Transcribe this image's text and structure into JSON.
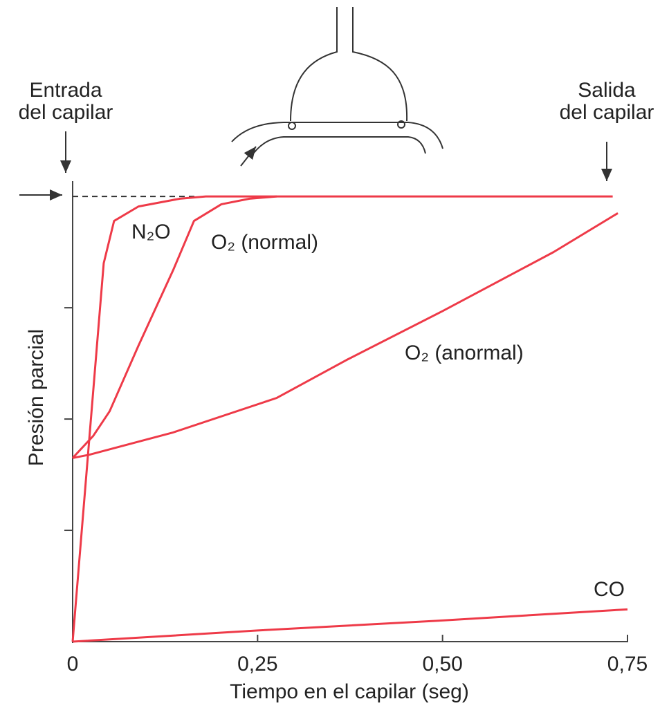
{
  "chart_data": {
    "type": "line",
    "xlabel": "Tiempo en el capilar (seg)",
    "ylabel": "Presión parcial",
    "annotations": [
      [
        "Entrada",
        "del capilar"
      ],
      [
        "Salida",
        "del capilar"
      ]
    ],
    "xlim": [
      0,
      0.75
    ],
    "xticks": [
      0,
      {
        "value": 0.25,
        "label": "0,25"
      },
      {
        "value": 0.5,
        "label": "0,50"
      },
      {
        "value": 0.75,
        "label": "0,75"
      }
    ],
    "ylim": [
      0,
      4.15
    ],
    "yticks": [
      1,
      2,
      3
    ],
    "reference_line": 4,
    "series": [
      {
        "name": "N₂O",
        "color": "#ee3a48",
        "x": [
          0,
          0.042,
          0.056,
          0.089,
          0.145,
          0.18,
          0.73
        ],
        "values": [
          0,
          3.4,
          3.78,
          3.91,
          3.98,
          4.0,
          4.0
        ]
      },
      {
        "name": "O₂ (normal)",
        "color": "#ee3a48",
        "x": [
          0,
          0.028,
          0.05,
          0.089,
          0.136,
          0.164,
          0.201,
          0.239,
          0.276
        ],
        "values": [
          1.65,
          1.85,
          2.07,
          2.66,
          3.34,
          3.78,
          3.93,
          3.98,
          4.0
        ]
      },
      {
        "name": "O₂ (anormal)",
        "color": "#ee3a48",
        "x": [
          0,
          0.023,
          0.136,
          0.276,
          0.37,
          0.5,
          0.65,
          0.737
        ],
        "values": [
          1.65,
          1.68,
          1.88,
          2.19,
          2.53,
          2.97,
          3.5,
          3.85
        ]
      },
      {
        "name": "CO",
        "color": "#ee3a48",
        "x": [
          0,
          0.25,
          0.5,
          0.75
        ],
        "values": [
          0,
          0.1,
          0.19,
          0.29
        ]
      }
    ]
  }
}
